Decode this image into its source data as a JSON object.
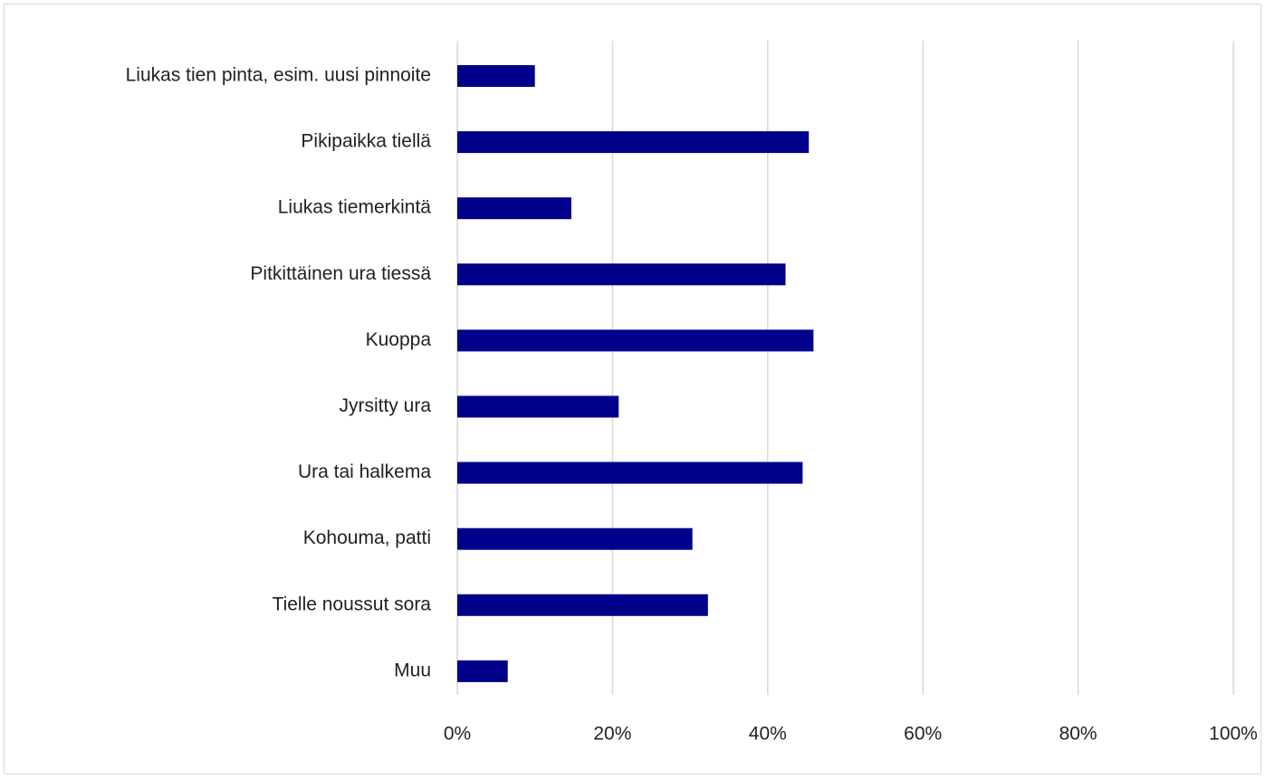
{
  "chart_data": {
    "type": "bar",
    "orientation": "horizontal",
    "categories": [
      "Liukas tien pinta, esim. uusi pinnoite",
      "Pikipaikka tiellä",
      "Liukas tiemerkintä",
      "Pitkittäinen ura tiessä",
      "Kuoppa",
      "Jyrsitty ura",
      "Ura tai halkema",
      "Kohouma, patti",
      "Tielle noussut sora",
      "Muu"
    ],
    "values": [
      10,
      45.3,
      14.7,
      42.3,
      45.9,
      20.8,
      44.5,
      30.3,
      32.3,
      6.5
    ],
    "value_unit": "%",
    "xlim": [
      0,
      100
    ],
    "x_ticks": [
      "0%",
      "20%",
      "40%",
      "60%",
      "80%",
      "100%"
    ],
    "title": "",
    "xlabel": "",
    "ylabel": "",
    "grid": "vertical",
    "legend": "none",
    "bar_color": "#00008B",
    "grid_color": "#d9d9d9"
  }
}
